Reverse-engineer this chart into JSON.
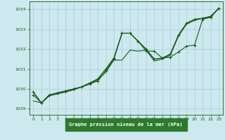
{
  "title": "Graphe pression niveau de la mer (hPa)",
  "background_color": "#cde8ee",
  "grid_color": "#aacdd6",
  "line_color": "#1a5c1a",
  "label_bg": "#2d7a2d",
  "xlim": [
    -0.5,
    23.5
  ],
  "ylim": [
    1028.7,
    1034.4
  ],
  "yticks": [
    1029,
    1030,
    1031,
    1032,
    1033,
    1034
  ],
  "xticks": [
    0,
    1,
    2,
    3,
    4,
    5,
    6,
    7,
    8,
    9,
    10,
    11,
    12,
    13,
    14,
    15,
    16,
    17,
    18,
    19,
    20,
    21,
    22,
    23
  ],
  "line1_x": [
    0,
    1,
    2,
    3,
    4,
    5,
    6,
    7,
    8,
    9,
    10,
    11,
    12,
    13,
    14,
    15,
    16,
    17,
    18,
    19,
    20,
    21,
    22,
    23
  ],
  "line1_y": [
    1029.7,
    1029.3,
    1029.7,
    1029.8,
    1029.85,
    1030.0,
    1030.1,
    1030.25,
    1030.4,
    1030.9,
    1031.5,
    1032.8,
    1032.8,
    1032.4,
    1031.9,
    1031.9,
    1031.55,
    1031.6,
    1031.85,
    1032.15,
    1032.2,
    1033.5,
    1033.6,
    1034.05
  ],
  "line2_x": [
    0,
    1,
    2,
    3,
    4,
    5,
    6,
    7,
    8,
    9,
    10,
    11,
    12,
    13,
    14,
    15,
    16,
    17,
    18,
    19,
    20,
    21,
    22,
    23
  ],
  "line2_y": [
    1029.4,
    1029.3,
    1029.65,
    1029.75,
    1029.85,
    1029.95,
    1030.1,
    1030.25,
    1030.45,
    1030.85,
    1031.45,
    1031.45,
    1031.95,
    1031.9,
    1031.95,
    1031.4,
    1031.5,
    1031.7,
    1032.65,
    1033.25,
    1033.45,
    1033.55,
    1033.6,
    1034.05
  ],
  "line3_x": [
    0,
    1,
    2,
    3,
    4,
    5,
    6,
    7,
    8,
    9,
    10,
    11,
    12,
    13,
    14,
    15,
    16,
    17,
    18,
    19,
    20,
    21,
    22,
    23
  ],
  "line3_y": [
    1029.85,
    1029.3,
    1029.7,
    1029.8,
    1029.9,
    1030.0,
    1030.1,
    1030.3,
    1030.5,
    1031.0,
    1031.55,
    1032.8,
    1032.8,
    1032.4,
    1032.0,
    1031.5,
    1031.55,
    1031.75,
    1032.7,
    1033.3,
    1033.5,
    1033.55,
    1033.65,
    1034.05
  ],
  "line4_x": [
    0,
    1,
    2,
    3,
    4,
    5,
    6,
    7,
    8,
    9,
    10,
    11,
    12,
    13,
    14,
    15,
    16,
    17,
    18,
    19,
    20,
    21,
    22,
    23
  ],
  "line4_y": [
    1029.85,
    1029.3,
    1029.7,
    1029.8,
    1029.9,
    1030.0,
    1030.1,
    1030.3,
    1030.5,
    1031.0,
    1031.55,
    1032.8,
    1032.8,
    1032.4,
    1032.0,
    1031.5,
    1031.55,
    1031.75,
    1032.7,
    1033.3,
    1033.5,
    1033.55,
    1033.65,
    1034.05
  ]
}
